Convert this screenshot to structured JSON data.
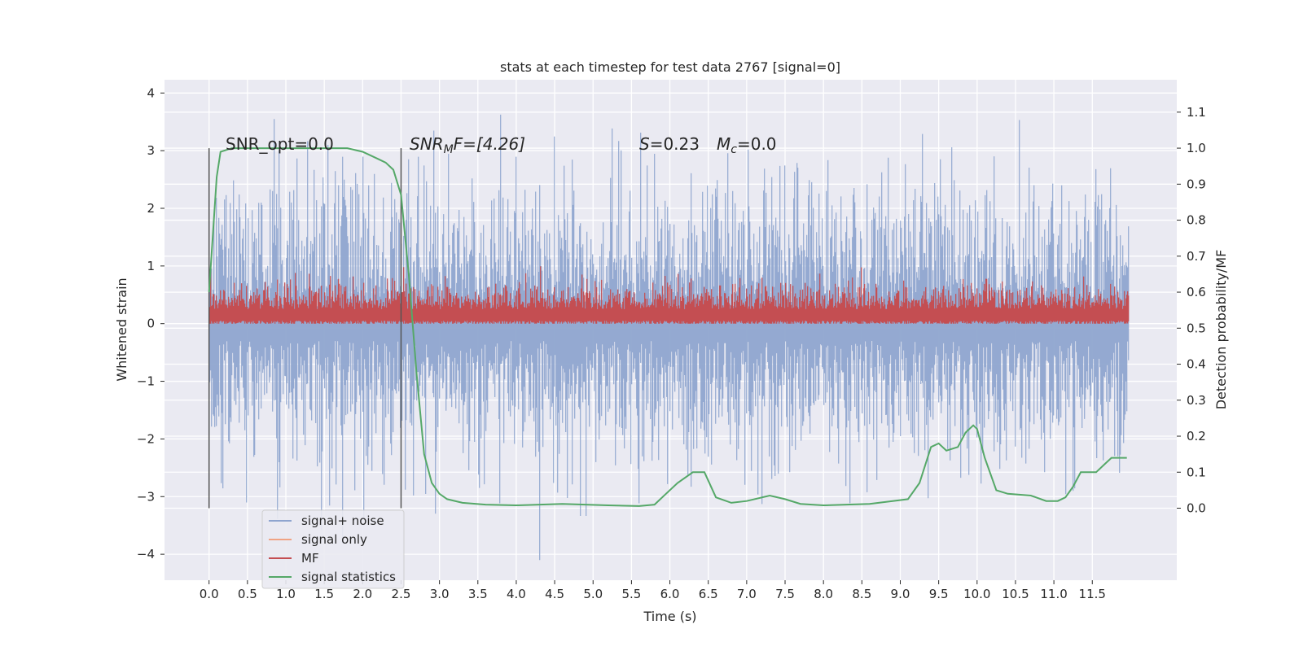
{
  "chart_data": {
    "type": "line",
    "title": "stats at each timestep for test data 2767 [signal=0]",
    "xlabel": "Time (s)",
    "ylabel_left": "Whitened strain",
    "ylabel_right": "Detection probability/MF",
    "xlim": [
      -0.58,
      12.6
    ],
    "ylim_left": [
      -4.45,
      4.23
    ],
    "ylim_right": [
      -0.2,
      1.19
    ],
    "grid": true,
    "legend_position": "lower-left",
    "x_ticks": [
      "0.0",
      "0.5",
      "1.0",
      "1.5",
      "2.0",
      "2.5",
      "3.0",
      "3.5",
      "4.0",
      "4.5",
      "5.0",
      "5.5",
      "6.0",
      "6.5",
      "7.0",
      "7.5",
      "8.0",
      "8.5",
      "9.0",
      "9.5",
      "10.0",
      "10.5",
      "11.0",
      "11.5"
    ],
    "y_ticks_left": [
      "4",
      "3",
      "2",
      "1",
      "0",
      "−1",
      "−2",
      "−3",
      "−4"
    ],
    "y_ticks_right": [
      "1.1",
      "1.0",
      "0.9",
      "0.8",
      "0.7",
      "0.6",
      "0.5",
      "0.4",
      "0.3",
      "0.2",
      "0.1",
      "0.0"
    ],
    "annotations": {
      "snr_opt": "SNR_opt=0.0",
      "snr_mf_var": "SNR",
      "snr_mf_sub": "M",
      "snr_mf_rest": "F=[4.26]",
      "s_var": "S",
      "s_rest": "=0.23",
      "mc_var": "M",
      "mc_sub": "c",
      "mc_rest": "=0.0"
    },
    "window_markers_x": [
      0.0,
      2.5
    ],
    "series": [
      {
        "name": "signal+ noise",
        "color": "#8fa5cf",
        "description_values": "noise envelope",
        "amplitude_range": [
          -4.1,
          3.9
        ]
      },
      {
        "name": "signal only",
        "color": "#f0a384"
      },
      {
        "name": "MF",
        "color": "#c44e52",
        "amplitude_range": [
          0.0,
          1.0
        ]
      },
      {
        "name": "signal statistics",
        "color": "#55a868",
        "x": [
          0.0,
          0.1,
          0.15,
          0.3,
          0.5,
          1.0,
          1.5,
          1.8,
          2.0,
          2.2,
          2.3,
          2.4,
          2.5,
          2.6,
          2.7,
          2.8,
          2.9,
          3.0,
          3.1,
          3.3,
          3.6,
          4.0,
          4.6,
          5.2,
          5.6,
          5.8,
          5.95,
          6.1,
          6.3,
          6.45,
          6.6,
          6.8,
          7.0,
          7.3,
          7.5,
          7.7,
          8.0,
          8.3,
          8.6,
          8.9,
          9.1,
          9.25,
          9.4,
          9.5,
          9.6,
          9.75,
          9.85,
          9.95,
          10.0,
          10.1,
          10.25,
          10.4,
          10.7,
          10.9,
          11.05,
          11.15,
          11.25,
          11.35,
          11.45,
          11.55,
          11.65,
          11.75,
          11.85,
          11.95
        ],
        "y": [
          0.6,
          0.92,
          0.99,
          1.0,
          1.0,
          1.0,
          1.0,
          1.0,
          0.99,
          0.97,
          0.96,
          0.94,
          0.87,
          0.65,
          0.38,
          0.15,
          0.07,
          0.04,
          0.025,
          0.015,
          0.01,
          0.008,
          0.012,
          0.008,
          0.006,
          0.01,
          0.04,
          0.07,
          0.1,
          0.1,
          0.03,
          0.015,
          0.02,
          0.035,
          0.025,
          0.012,
          0.008,
          0.01,
          0.012,
          0.02,
          0.025,
          0.07,
          0.17,
          0.18,
          0.16,
          0.17,
          0.21,
          0.23,
          0.22,
          0.14,
          0.05,
          0.04,
          0.035,
          0.02,
          0.02,
          0.03,
          0.06,
          0.1,
          0.1,
          0.1,
          0.12,
          0.14,
          0.14,
          0.14
        ]
      }
    ]
  }
}
